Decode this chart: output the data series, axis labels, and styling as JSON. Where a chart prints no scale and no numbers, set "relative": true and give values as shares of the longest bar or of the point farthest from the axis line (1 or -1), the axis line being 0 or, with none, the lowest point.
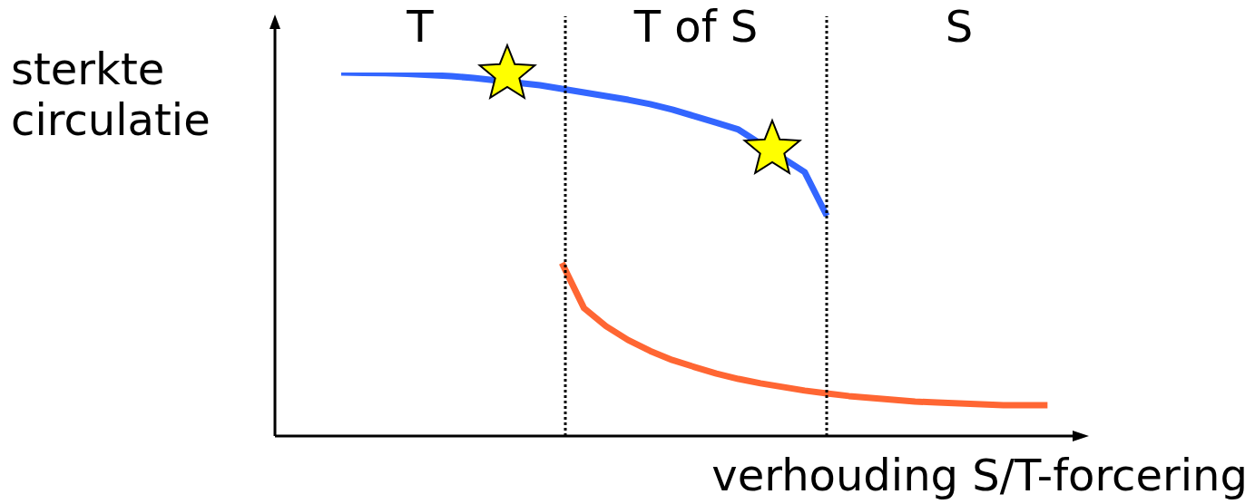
{
  "chart_data": {
    "type": "line",
    "relative": true,
    "xlabel": "verhouding S/T-forcering",
    "ylabel": "sterkte circulatie",
    "categories": [
      null,
      null,
      null,
      null,
      null,
      null,
      null,
      null,
      null,
      null,
      null,
      null,
      null,
      null,
      null,
      null,
      null,
      null,
      null,
      null,
      null,
      null,
      null,
      null,
      null,
      null,
      null,
      null,
      null,
      null,
      null,
      null,
      null,
      null,
      null,
      null,
      null,
      null
    ],
    "series": [
      {
        "color": "#3366ff",
        "values": [
          null,
          null,
          null,
          1.0,
          0.999,
          0.998,
          0.996,
          0.993,
          0.99,
          0.985,
          null,
          null,
          0.965,
          0.955,
          0.945,
          0.935,
          0.925,
          0.913,
          0.898,
          0.88,
          0.862,
          0.843,
          null,
          null,
          0.726,
          0.606,
          null,
          null,
          null,
          null,
          null,
          null,
          null,
          null,
          null,
          null,
          null,
          null
        ]
      },
      {
        "color": "#ff6633",
        "values": [
          null,
          null,
          null,
          null,
          null,
          null,
          null,
          null,
          null,
          null,
          null,
          null,
          null,
          0.476,
          0.352,
          0.302,
          0.264,
          0.234,
          0.209,
          0.19,
          0.172,
          0.157,
          0.145,
          0.135,
          0.125,
          0.117,
          0.11,
          0.105,
          0.1,
          0.095,
          0.092,
          0.09,
          0.087,
          0.085,
          0.085,
          0.085,
          null,
          null
        ]
      }
    ],
    "annotations": [
      "T",
      "T of S",
      "S"
    ],
    "grid": false,
    "legend": false
  }
}
